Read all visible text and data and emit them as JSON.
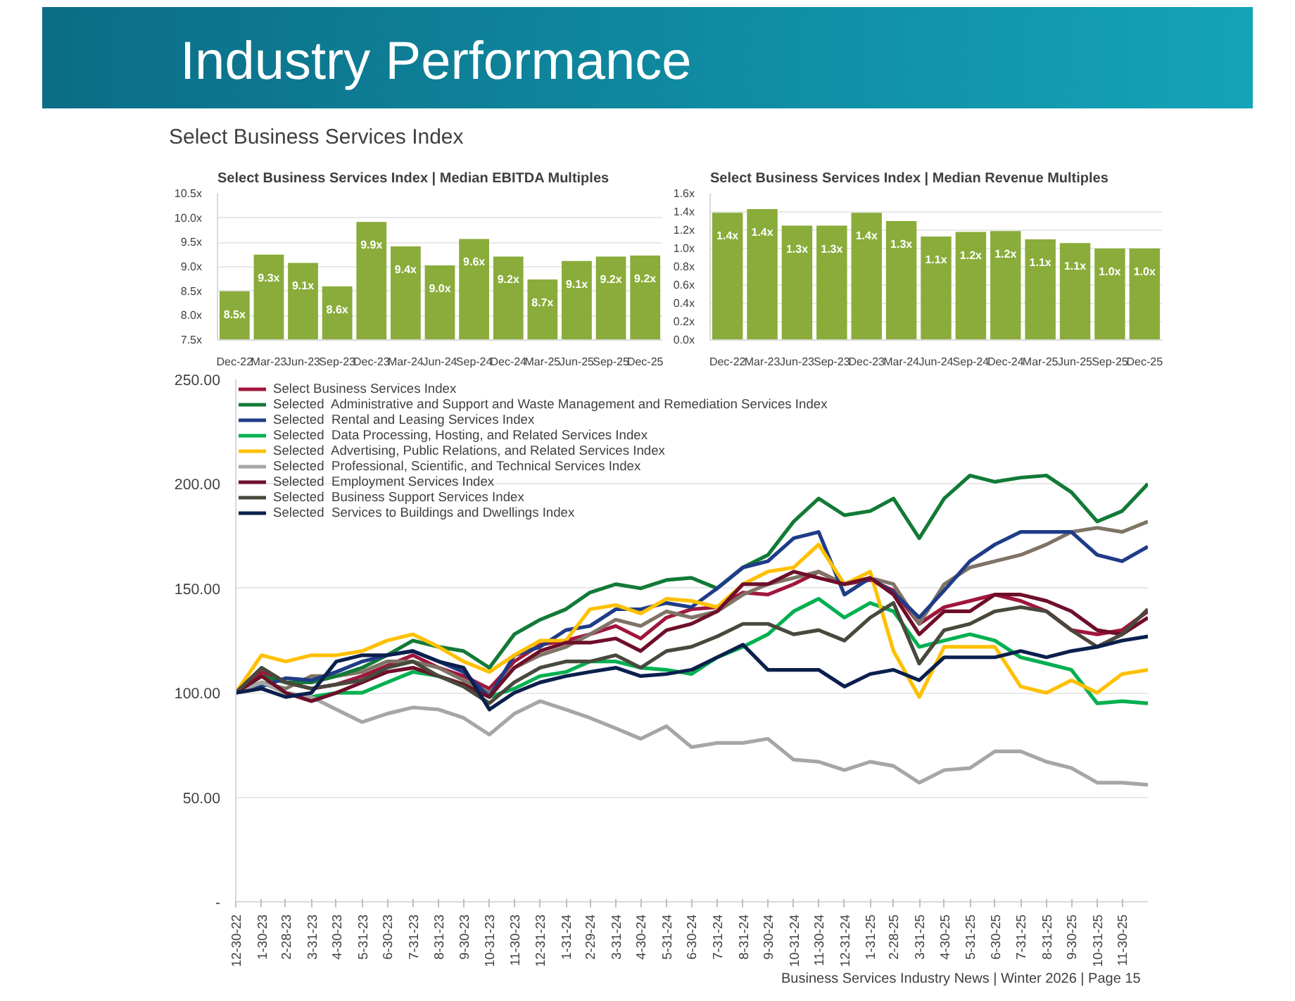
{
  "chart_data": [
    {
      "type": "other",
      "title": "Industry Performance",
      "subtitle": "Select Business Services Index",
      "annotations": [
        "Business Services Industry News | Winter 2026 | Page 15"
      ]
    },
    {
      "type": "bar",
      "title": "Select Business Services Index | Median EBITDA Multiples",
      "categories": [
        "Dec-22",
        "Mar-23",
        "Jun-23",
        "Sep-23",
        "Dec-23",
        "Mar-24",
        "Jun-24",
        "Sep-24",
        "Dec-24",
        "Mar-25",
        "Jun-25",
        "Sep-25",
        "Dec-25"
      ],
      "values": [
        8.5,
        9.25,
        9.08,
        8.6,
        9.92,
        9.42,
        9.03,
        9.57,
        9.21,
        8.74,
        9.12,
        9.21,
        9.23
      ],
      "value_labels": [
        "8.5x",
        "9.3x",
        "9.1x",
        "8.6x",
        "9.9x",
        "9.4x",
        "9.0x",
        "9.6x",
        "9.2x",
        "8.7x",
        "9.1x",
        "9.2x",
        "9.2x"
      ],
      "color": "#8aac3a",
      "ylim": [
        7.5,
        10.5
      ],
      "yticks": [
        {
          "value": 7.5,
          "label": "7.5x"
        },
        {
          "value": 8.0,
          "label": "8.0x"
        },
        {
          "value": 8.5,
          "label": "8.5x"
        },
        {
          "value": 9.0,
          "label": "9.0x"
        },
        {
          "value": 9.5,
          "label": "9.5x"
        },
        {
          "value": 10.0,
          "label": "10.0x"
        },
        {
          "value": 10.5,
          "label": "10.5x"
        }
      ],
      "grid": "y"
    },
    {
      "type": "bar",
      "title": "Select Business Services Index | Median Revenue Multiples",
      "categories": [
        "Dec-22",
        "Mar-23",
        "Jun-23",
        "Sep-23",
        "Dec-23",
        "Mar-24",
        "Jun-24",
        "Sep-24",
        "Dec-24",
        "Mar-25",
        "Jun-25",
        "Sep-25",
        "Dec-25"
      ],
      "values": [
        1.39,
        1.43,
        1.25,
        1.25,
        1.39,
        1.3,
        1.13,
        1.18,
        1.19,
        1.1,
        1.06,
        1.0,
        1.0
      ],
      "value_labels": [
        "1.4x",
        "1.4x",
        "1.3x",
        "1.3x",
        "1.4x",
        "1.3x",
        "1.1x",
        "1.2x",
        "1.2x",
        "1.1x",
        "1.1x",
        "1.0x",
        "1.0x"
      ],
      "color": "#8aac3a",
      "ylim": [
        0,
        1.6
      ],
      "yticks": [
        {
          "value": 0,
          "label": "0.0x"
        },
        {
          "value": 0.2,
          "label": "0.2x"
        },
        {
          "value": 0.4,
          "label": "0.4x"
        },
        {
          "value": 0.6,
          "label": "0.6x"
        },
        {
          "value": 0.8,
          "label": "0.8x"
        },
        {
          "value": 1.0,
          "label": "1.0x"
        },
        {
          "value": 1.2,
          "label": "1.2x"
        },
        {
          "value": 1.4,
          "label": "1.4x"
        },
        {
          "value": 1.6,
          "label": "1.6x"
        }
      ],
      "grid": "y"
    },
    {
      "type": "line",
      "x": [
        "2022-12-30",
        "2023-01-30",
        "2023-02-28",
        "2023-03-31",
        "2023-04-30",
        "2023-05-31",
        "2023-06-30",
        "2023-07-31",
        "2023-08-31",
        "2023-09-30",
        "2023-10-31",
        "2023-11-30",
        "2023-12-31",
        "2024-01-31",
        "2024-02-29",
        "2024-03-31",
        "2024-04-30",
        "2024-05-31",
        "2024-06-30",
        "2024-07-31",
        "2024-08-31",
        "2024-09-30",
        "2024-10-31",
        "2024-11-30",
        "2024-12-31",
        "2025-01-31",
        "2025-02-28",
        "2025-03-31",
        "2025-04-30",
        "2025-05-31",
        "2025-06-30",
        "2025-07-31",
        "2025-08-31",
        "2025-09-30",
        "2025-10-31",
        "2025-11-30",
        "2025-12-31"
      ],
      "series": [
        {
          "name": "Select Business Services Index",
          "color": "#a0163d",
          "values": [
            100,
            110,
            105,
            102,
            104,
            108,
            113,
            118,
            112,
            108,
            102,
            115,
            123,
            125,
            128,
            132,
            126,
            136,
            140,
            141,
            148,
            147,
            152,
            158,
            152,
            154,
            149,
            133,
            141,
            144,
            147,
            144,
            139,
            130,
            128,
            130,
            139
          ]
        },
        {
          "color": "#7f7366",
          "values": [
            100,
            105,
            102,
            108,
            108,
            110,
            115,
            115,
            112,
            106,
            100,
            112,
            118,
            122,
            128,
            135,
            132,
            139,
            136,
            139,
            147,
            152,
            155,
            158,
            152,
            155,
            152,
            133,
            152,
            160,
            163,
            166,
            171,
            177,
            179,
            177,
            182
          ]
        },
        {
          "name": "Selected  Administrative and Support and Waste Management and Remediation Services Index",
          "color": "#127a36",
          "values": [
            100,
            108,
            105,
            105,
            108,
            112,
            118,
            125,
            122,
            120,
            112,
            128,
            135,
            140,
            148,
            152,
            150,
            154,
            155,
            150,
            160,
            166,
            182,
            193,
            185,
            187,
            193,
            174,
            193,
            204,
            201,
            203,
            204,
            196,
            182,
            187,
            200
          ]
        },
        {
          "name": "Selected  Rental and Leasing Services Index",
          "color": "#1f3c88",
          "values": [
            100,
            103,
            107,
            106,
            110,
            115,
            118,
            120,
            115,
            110,
            98,
            118,
            122,
            130,
            132,
            140,
            140,
            143,
            141,
            150,
            160,
            163,
            174,
            177,
            147,
            155,
            148,
            136,
            149,
            163,
            171,
            177,
            177,
            177,
            166,
            163,
            170
          ]
        },
        {
          "name": "Selected  Data Processing, Hosting, and Related Services Index",
          "color": "#00b050",
          "values": [
            100,
            105,
            100,
            98,
            100,
            100,
            105,
            110,
            108,
            104,
            98,
            102,
            108,
            110,
            115,
            115,
            112,
            111,
            109,
            117,
            122,
            128,
            139,
            145,
            136,
            143,
            139,
            122,
            125,
            128,
            125,
            117,
            114,
            111,
            95,
            96,
            95
          ]
        },
        {
          "name": "Selected  Advertising, Public Relations, and Related Services Index",
          "color": "#ffc000",
          "values": [
            100,
            118,
            115,
            118,
            118,
            120,
            125,
            128,
            122,
            115,
            110,
            118,
            125,
            125,
            140,
            142,
            138,
            145,
            144,
            141,
            152,
            158,
            160,
            171,
            152,
            158,
            120,
            98,
            122,
            122,
            122,
            103,
            100,
            106,
            100,
            109,
            111
          ]
        },
        {
          "name": "Selected  Professional, Scientific, and Technical Services Index",
          "color": "#a6a6a6",
          "values": [
            100,
            105,
            100,
            98,
            92,
            86,
            90,
            93,
            92,
            88,
            80,
            90,
            96,
            92,
            88,
            83,
            78,
            84,
            74,
            76,
            76,
            78,
            68,
            67,
            63,
            67,
            65,
            57,
            63,
            64,
            72,
            72,
            67,
            64,
            57,
            57,
            56
          ]
        },
        {
          "name": "Selected  Employment Services Index",
          "color": "#6e0f2a",
          "values": [
            100,
            108,
            100,
            96,
            100,
            105,
            110,
            112,
            108,
            104,
            98,
            112,
            120,
            124,
            124,
            126,
            120,
            130,
            133,
            139,
            152,
            152,
            158,
            155,
            152,
            155,
            147,
            128,
            139,
            139,
            147,
            147,
            144,
            139,
            130,
            128,
            136
          ]
        },
        {
          "name": "Selected  Business Support Services Index",
          "color": "#48483c",
          "values": [
            100,
            112,
            105,
            102,
            104,
            106,
            112,
            115,
            108,
            103,
            95,
            105,
            112,
            115,
            115,
            118,
            112,
            120,
            122,
            127,
            133,
            133,
            128,
            130,
            125,
            136,
            143,
            114,
            130,
            133,
            139,
            141,
            139,
            130,
            122,
            128,
            140
          ]
        },
        {
          "name": "Selected  Services to Buildings and Dwellings Index",
          "color": "#0b1f4d",
          "values": [
            100,
            102,
            98,
            100,
            115,
            118,
            118,
            120,
            115,
            112,
            92,
            100,
            105,
            108,
            110,
            112,
            108,
            109,
            111,
            117,
            123,
            111,
            111,
            111,
            103,
            109,
            111,
            106,
            117,
            117,
            117,
            120,
            117,
            120,
            122,
            125,
            127
          ]
        }
      ],
      "xlim": [
        "2022-12-30",
        "2025-12-31"
      ],
      "xticks": [
        {
          "value": "2022-12-30",
          "label": "12-30-22"
        },
        {
          "value": "2023-01-30",
          "label": "1-30-23"
        },
        {
          "value": "2023-02-28",
          "label": "2-28-23"
        },
        {
          "value": "2023-03-31",
          "label": "3-31-23"
        },
        {
          "value": "2023-04-30",
          "label": "4-30-23"
        },
        {
          "value": "2023-05-31",
          "label": "5-31-23"
        },
        {
          "value": "2023-06-30",
          "label": "6-30-23"
        },
        {
          "value": "2023-07-31",
          "label": "7-31-23"
        },
        {
          "value": "2023-08-31",
          "label": "8-31-23"
        },
        {
          "value": "2023-09-30",
          "label": "9-30-23"
        },
        {
          "value": "2023-10-31",
          "label": "10-31-23"
        },
        {
          "value": "2023-11-30",
          "label": "11-30-23"
        },
        {
          "value": "2023-12-31",
          "label": "12-31-23"
        },
        {
          "value": "2024-01-31",
          "label": "1-31-24"
        },
        {
          "value": "2024-02-29",
          "label": "2-29-24"
        },
        {
          "value": "2024-03-31",
          "label": "3-31-24"
        },
        {
          "value": "2024-04-30",
          "label": "4-30-24"
        },
        {
          "value": "2024-05-31",
          "label": "5-31-24"
        },
        {
          "value": "2024-06-30",
          "label": "6-30-24"
        },
        {
          "value": "2024-07-31",
          "label": "7-31-24"
        },
        {
          "value": "2024-08-31",
          "label": "8-31-24"
        },
        {
          "value": "2024-09-30",
          "label": "9-30-24"
        },
        {
          "value": "2024-10-31",
          "label": "10-31-24"
        },
        {
          "value": "2024-11-30",
          "label": "11-30-24"
        },
        {
          "value": "2024-12-31",
          "label": "12-31-24"
        },
        {
          "value": "2025-01-31",
          "label": "1-31-25"
        },
        {
          "value": "2025-02-28",
          "label": "2-28-25"
        },
        {
          "value": "2025-03-31",
          "label": "3-31-25"
        },
        {
          "value": "2025-04-30",
          "label": "4-30-25"
        },
        {
          "value": "2025-05-31",
          "label": "5-31-25"
        },
        {
          "value": "2025-06-30",
          "label": "6-30-25"
        },
        {
          "value": "2025-07-31",
          "label": "7-31-25"
        },
        {
          "value": "2025-08-31",
          "label": "8-31-25"
        },
        {
          "value": "2025-09-30",
          "label": "9-30-25"
        },
        {
          "value": "2025-10-31",
          "label": "10-31-25"
        },
        {
          "value": "2025-11-30",
          "label": "11-30-25"
        }
      ],
      "ylim": [
        0,
        250
      ],
      "yticks": [
        {
          "value": 0,
          "label": "-"
        },
        {
          "value": 50,
          "label": "50.00"
        },
        {
          "value": 100,
          "label": "100.00"
        },
        {
          "value": 150,
          "label": "150.00"
        },
        {
          "value": 200,
          "label": "200.00"
        },
        {
          "value": 250,
          "label": "250.00"
        }
      ],
      "grid": "y",
      "legend": "top left"
    }
  ]
}
